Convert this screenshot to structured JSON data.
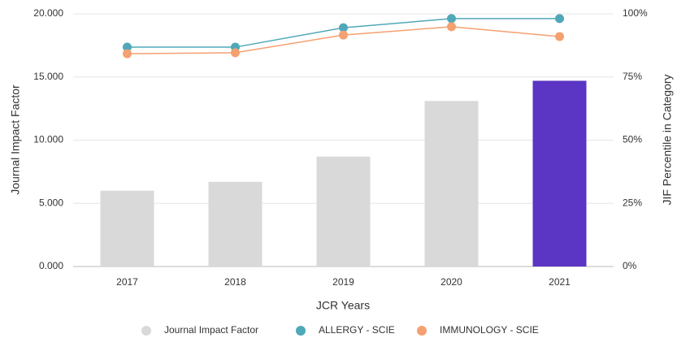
{
  "chart_data": {
    "type": "bar-line",
    "categories": [
      "2017",
      "2018",
      "2019",
      "2020",
      "2021"
    ],
    "xlabel": "JCR Years",
    "ylabel": "Journal Impact Factor",
    "y2label": "JIF Percentile in Category",
    "ylim": [
      0,
      20
    ],
    "yticks": [
      {
        "value": 0,
        "label": "0.000"
      },
      {
        "value": 5,
        "label": "5.000"
      },
      {
        "value": 10,
        "label": "10.000"
      },
      {
        "value": 15,
        "label": "15.000"
      },
      {
        "value": 20,
        "label": "20.000"
      }
    ],
    "y2lim": [
      0,
      100
    ],
    "y2ticks": [
      {
        "value": 0,
        "label": "0%"
      },
      {
        "value": 25,
        "label": "25%"
      },
      {
        "value": 50,
        "label": "50%"
      },
      {
        "value": 75,
        "label": "75%"
      },
      {
        "value": 100,
        "label": "100%"
      }
    ],
    "grid": true,
    "series": [
      {
        "name": "Journal Impact Factor",
        "type": "bar",
        "color": "#d9d9d9",
        "colors": [
          "#d9d9d9",
          "#d9d9d9",
          "#d9d9d9",
          "#d9d9d9",
          "#5b35c3"
        ],
        "values": [
          6.0,
          6.7,
          8.7,
          13.1,
          14.7
        ]
      },
      {
        "name": "ALLERGY - SCIE",
        "type": "line",
        "axis": "y2",
        "color": "#4fa8b8",
        "values": [
          86.8,
          86.8,
          94.5,
          98.1,
          98.1
        ]
      },
      {
        "name": "IMMUNOLOGY - SCIE",
        "type": "line",
        "axis": "y2",
        "color": "#f4a070",
        "values": [
          84.2,
          84.6,
          91.6,
          94.9,
          91.0
        ]
      }
    ]
  }
}
